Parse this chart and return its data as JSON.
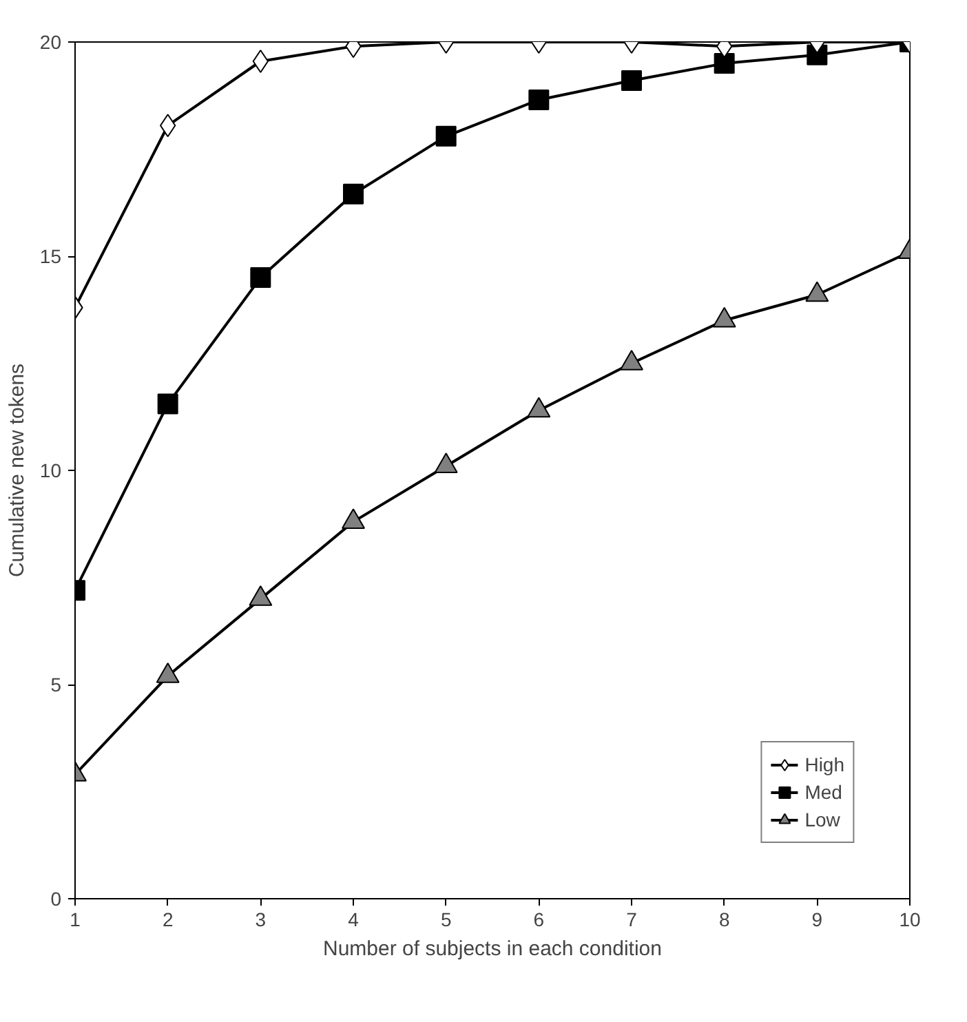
{
  "chart_data": {
    "type": "line",
    "xlabel": "Number of subjects in each condition",
    "ylabel": "Cumulative new tokens",
    "x": [
      1,
      2,
      3,
      4,
      5,
      6,
      7,
      8,
      9,
      10
    ],
    "xlim": [
      1,
      10
    ],
    "xticks": [
      1,
      2,
      3,
      4,
      5,
      6,
      7,
      8,
      9,
      10
    ],
    "ylim": [
      0,
      20
    ],
    "yticks": [
      0,
      5,
      10,
      15,
      20
    ],
    "grid": false,
    "legend": "bottom right",
    "line_style": "solid",
    "series": [
      {
        "name": "High",
        "color": "#ffffff",
        "marker": "diamond",
        "values": [
          13.8,
          18.05,
          19.55,
          19.9,
          20,
          20,
          20,
          19.9,
          20,
          20
        ]
      },
      {
        "name": "Med",
        "color": "#000000",
        "marker": "square",
        "values": [
          7.2,
          11.55,
          14.5,
          16.45,
          17.8,
          18.65,
          19.1,
          19.5,
          19.7,
          20
        ]
      },
      {
        "name": "Low",
        "color": "#808080",
        "marker": "triangle",
        "values": [
          2.9,
          5.2,
          7.0,
          8.8,
          10.1,
          11.4,
          12.5,
          13.5,
          14.1,
          15.1
        ]
      }
    ]
  }
}
